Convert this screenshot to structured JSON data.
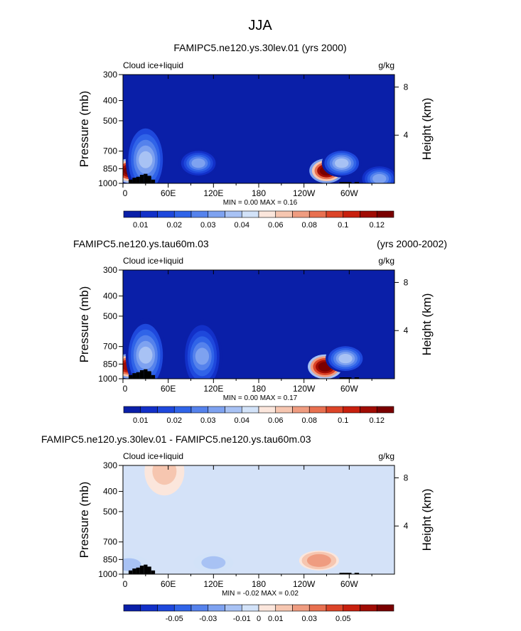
{
  "figure_title": "JJA",
  "colors": {
    "ice_scale": [
      "#0a1fa8",
      "#1230c8",
      "#1e48dc",
      "#3064e8",
      "#5582ec",
      "#7ea2f0",
      "#a8c2f4",
      "#d2e2f8",
      "#fbe6dc",
      "#f6c6b0",
      "#ef9c80",
      "#e87050",
      "#dc4428",
      "#c8200e",
      "#a00c04",
      "#7a0000"
    ],
    "diff_scale": [
      "#0a1fa8",
      "#1230c8",
      "#1e48dc",
      "#3064e8",
      "#5582ec",
      "#7ea2f0",
      "#a8c2f4",
      "#d2e2f8",
      "#fbe6dc",
      "#f6c6b0",
      "#ef9c80",
      "#e87050",
      "#dc4428",
      "#c8200e",
      "#a00c04",
      "#7a0000"
    ],
    "background_field": "#0a1fa8",
    "diff_background": "#d4e2f8",
    "topography": "#000000"
  },
  "chart_data": [
    {
      "type": "heatmap",
      "title": "FAMIPC5.ne120.ys.30lev.01 (yrs 2000)",
      "title_right": "",
      "field_label": "Cloud ice+liquid",
      "units": "g/kg",
      "ylabel": "Pressure (mb)",
      "ylabel_right": "Height (km)",
      "y_ticks": [
        "300",
        "400",
        "500",
        "700",
        "850",
        "1000"
      ],
      "y_tick_values": [
        300,
        400,
        500,
        700,
        850,
        1000
      ],
      "y_right_ticks": [
        "8",
        "4"
      ],
      "y_right_values": [
        8,
        4
      ],
      "x_ticks": [
        "0",
        "60E",
        "120E",
        "180",
        "120W",
        "60W"
      ],
      "x_tick_values": [
        0,
        60,
        120,
        180,
        240,
        300
      ],
      "xlim": [
        0,
        360
      ],
      "ylim": [
        1000,
        300
      ],
      "stats": "MIN =    0.00   MAX =    0.16",
      "colorbar_labels": [
        "0.01",
        "0.02",
        "0.03",
        "0.04",
        "0.06",
        "0.08",
        "0.1",
        "0.12"
      ],
      "features": [
        {
          "lon": 10,
          "p": 870,
          "value": 0.16
        },
        {
          "lon": 30,
          "p": 770,
          "value": 0.04
        },
        {
          "lon": 100,
          "p": 800,
          "value": 0.03
        },
        {
          "lon": 270,
          "p": 870,
          "value": 0.15
        },
        {
          "lon": 290,
          "p": 800,
          "value": 0.04
        },
        {
          "lon": 340,
          "p": 950,
          "value": 0.03
        }
      ]
    },
    {
      "type": "heatmap",
      "title": "FAMIPC5.ne120.ys.tau60m.03",
      "title_right": "(yrs 2000-2002)",
      "field_label": "Cloud ice+liquid",
      "units": "g/kg",
      "ylabel": "Pressure (mb)",
      "ylabel_right": "Height (km)",
      "y_ticks": [
        "300",
        "400",
        "500",
        "700",
        "850",
        "1000"
      ],
      "y_tick_values": [
        300,
        400,
        500,
        700,
        850,
        1000
      ],
      "y_right_ticks": [
        "8",
        "4"
      ],
      "y_right_values": [
        8,
        4
      ],
      "x_ticks": [
        "0",
        "60E",
        "120E",
        "180",
        "120W",
        "60W"
      ],
      "x_tick_values": [
        0,
        60,
        120,
        180,
        240,
        300
      ],
      "xlim": [
        0,
        360
      ],
      "ylim": [
        1000,
        300
      ],
      "stats": "MIN =    0.00   MAX =    0.17",
      "colorbar_labels": [
        "0.01",
        "0.02",
        "0.03",
        "0.04",
        "0.06",
        "0.08",
        "0.1",
        "0.12"
      ],
      "features": [
        {
          "lon": 8,
          "p": 870,
          "value": 0.14
        },
        {
          "lon": 30,
          "p": 770,
          "value": 0.04
        },
        {
          "lon": 105,
          "p": 780,
          "value": 0.03
        },
        {
          "lon": 268,
          "p": 875,
          "value": 0.17
        },
        {
          "lon": 295,
          "p": 800,
          "value": 0.04
        }
      ]
    },
    {
      "type": "heatmap",
      "title": "FAMIPC5.ne120.ys.30lev.01 - FAMIPC5.ne120.ys.tau60m.03",
      "title_right": "",
      "field_label": "Cloud ice+liquid",
      "units": "g/kg",
      "ylabel": "Pressure (mb)",
      "ylabel_right": "Height (km)",
      "y_ticks": [
        "300",
        "400",
        "500",
        "700",
        "850",
        "1000"
      ],
      "y_tick_values": [
        300,
        400,
        500,
        700,
        850,
        1000
      ],
      "y_right_ticks": [
        "8",
        "4"
      ],
      "y_right_values": [
        8,
        4
      ],
      "x_ticks": [
        "0",
        "60E",
        "120E",
        "180",
        "120W",
        "60W"
      ],
      "x_tick_values": [
        0,
        60,
        120,
        180,
        240,
        300
      ],
      "xlim": [
        0,
        360
      ],
      "ylim": [
        1000,
        300
      ],
      "stats": "MIN =   -0.02   MAX =    0.02",
      "colorbar_labels": [
        "-0.05",
        "-0.03",
        "-0.01",
        "0",
        "0.01",
        "0.03",
        "0.05"
      ],
      "features": [
        {
          "lon": 260,
          "p": 860,
          "value": 0.02
        },
        {
          "lon": 55,
          "p": 320,
          "value": 0.01
        },
        {
          "lon": 120,
          "p": 880,
          "value": -0.01
        },
        {
          "lon": 8,
          "p": 900,
          "value": -0.01
        }
      ]
    }
  ]
}
